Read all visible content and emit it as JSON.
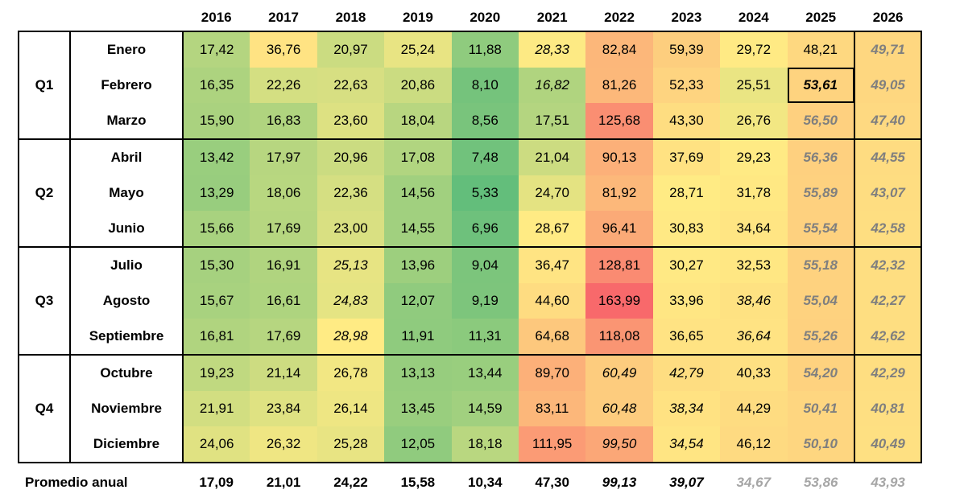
{
  "chart_data": {
    "type": "table",
    "years": [
      "2016",
      "2017",
      "2018",
      "2019",
      "2020",
      "2021",
      "2022",
      "2023",
      "2024",
      "2025",
      "2026"
    ],
    "quarters": [
      {
        "label": "Q1",
        "months": [
          "Enero",
          "Febrero",
          "Marzo"
        ]
      },
      {
        "label": "Q2",
        "months": [
          "Abril",
          "Mayo",
          "Junio"
        ]
      },
      {
        "label": "Q3",
        "months": [
          "Julio",
          "Agosto",
          "Septiembre"
        ]
      },
      {
        "label": "Q4",
        "months": [
          "Octubre",
          "Noviembre",
          "Diciembre"
        ]
      }
    ],
    "rows": [
      {
        "month": "Enero",
        "values": [
          "17,42",
          "36,76",
          "20,97",
          "25,24",
          "11,88",
          "28,33",
          "82,84",
          "59,39",
          "29,72",
          "48,21",
          "49,71"
        ]
      },
      {
        "month": "Febrero",
        "values": [
          "16,35",
          "22,26",
          "22,63",
          "20,86",
          "8,10",
          "16,82",
          "81,26",
          "52,33",
          "25,51",
          "53,61",
          "49,05"
        ]
      },
      {
        "month": "Marzo",
        "values": [
          "15,90",
          "16,83",
          "23,60",
          "18,04",
          "8,56",
          "17,51",
          "125,68",
          "43,30",
          "26,76",
          "56,50",
          "47,40"
        ]
      },
      {
        "month": "Abril",
        "values": [
          "13,42",
          "17,97",
          "20,96",
          "17,08",
          "7,48",
          "21,04",
          "90,13",
          "37,69",
          "29,23",
          "56,36",
          "44,55"
        ]
      },
      {
        "month": "Mayo",
        "values": [
          "13,29",
          "18,06",
          "22,36",
          "14,56",
          "5,33",
          "24,70",
          "81,92",
          "28,71",
          "31,78",
          "55,89",
          "43,07"
        ]
      },
      {
        "month": "Junio",
        "values": [
          "15,66",
          "17,69",
          "23,00",
          "14,55",
          "6,96",
          "28,67",
          "96,41",
          "30,83",
          "34,64",
          "55,54",
          "42,58"
        ]
      },
      {
        "month": "Julio",
        "values": [
          "15,30",
          "16,91",
          "25,13",
          "13,96",
          "9,04",
          "36,47",
          "128,81",
          "30,27",
          "32,53",
          "55,18",
          "42,32"
        ]
      },
      {
        "month": "Agosto",
        "values": [
          "15,67",
          "16,61",
          "24,83",
          "12,07",
          "9,19",
          "44,60",
          "163,99",
          "33,96",
          "38,46",
          "55,04",
          "42,27"
        ]
      },
      {
        "month": "Septiembre",
        "values": [
          "16,81",
          "17,69",
          "28,98",
          "11,91",
          "11,31",
          "64,68",
          "118,08",
          "36,65",
          "36,64",
          "55,26",
          "42,62"
        ]
      },
      {
        "month": "Octubre",
        "values": [
          "19,23",
          "21,14",
          "26,78",
          "13,13",
          "13,44",
          "89,70",
          "60,49",
          "42,79",
          "40,33",
          "54,20",
          "42,29"
        ]
      },
      {
        "month": "Noviembre",
        "values": [
          "21,91",
          "23,84",
          "26,14",
          "13,45",
          "14,59",
          "83,11",
          "60,48",
          "38,34",
          "44,29",
          "50,41",
          "40,81"
        ]
      },
      {
        "month": "Diciembre",
        "values": [
          "24,06",
          "26,32",
          "25,28",
          "12,05",
          "18,18",
          "111,95",
          "99,50",
          "34,54",
          "46,12",
          "50,10",
          "40,49"
        ]
      }
    ],
    "italic_cells": [
      [
        0,
        5
      ],
      [
        1,
        5
      ],
      [
        6,
        2
      ],
      [
        7,
        2
      ],
      [
        8,
        2
      ],
      [
        9,
        6
      ],
      [
        10,
        6
      ],
      [
        11,
        6
      ],
      [
        9,
        7
      ],
      [
        10,
        7
      ],
      [
        11,
        7
      ],
      [
        7,
        8
      ],
      [
        8,
        8
      ]
    ],
    "projected_cells": {
      "2025_from_row": 2,
      "2026_from_row": 0
    },
    "highlight_cell": {
      "row": 1,
      "col": 9
    },
    "average": {
      "label": "Promedio anual",
      "values": [
        "17,09",
        "21,01",
        "24,22",
        "15,58",
        "10,34",
        "47,30",
        "99,13",
        "39,07",
        "34,67",
        "53,86",
        "43,93"
      ],
      "italic": [
        6,
        7
      ],
      "gray": [
        8,
        9,
        10
      ]
    },
    "color_scale": {
      "low": "#63be7b",
      "mid": "#ffeb84",
      "high": "#f8696b"
    }
  }
}
